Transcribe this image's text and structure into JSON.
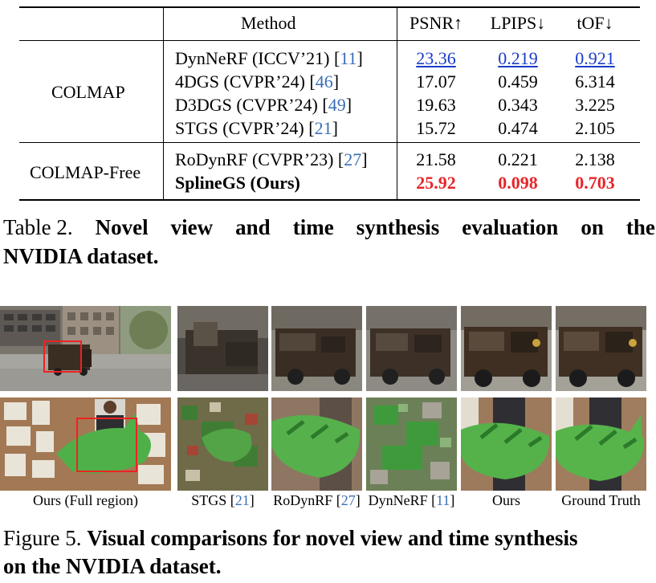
{
  "table": {
    "header": {
      "method": "Method",
      "psnr": "PSNR↑",
      "lpips": "LPIPS↓",
      "tof": "tOF↓"
    },
    "groups": [
      {
        "label": "COLMAP",
        "rows": [
          {
            "name": "DynNeRF (ICCV’21) [",
            "ref": "11",
            "psnr": "23.36",
            "lpips": "0.219",
            "tof": "0.921",
            "style": "second"
          },
          {
            "name": "4DGS (CVPR’24) [",
            "ref": "46",
            "psnr": "17.07",
            "lpips": "0.459",
            "tof": "6.314",
            "style": "normal"
          },
          {
            "name": "D3DGS (CVPR’24) [",
            "ref": "49",
            "psnr": "19.63",
            "lpips": "0.343",
            "tof": "3.225",
            "style": "normal"
          },
          {
            "name": "STGS (CVPR’24) [",
            "ref": "21",
            "psnr": "15.72",
            "lpips": "0.474",
            "tof": "2.105",
            "style": "normal"
          }
        ]
      },
      {
        "label": "COLMAP-Free",
        "rows": [
          {
            "name": "RoDynRF (CVPR’23) [",
            "ref": "27",
            "psnr": "21.58",
            "lpips": "0.221",
            "tof": "2.138",
            "style": "normal"
          },
          {
            "name": "SplineGS (Ours)",
            "ref": "",
            "psnr": "25.92",
            "lpips": "0.098",
            "tof": "0.703",
            "style": "best"
          }
        ]
      }
    ],
    "caption": {
      "label": "Table 2.",
      "words": [
        "Novel",
        "view",
        "and",
        "time",
        "synthesis",
        "evaluation",
        "on",
        "the"
      ],
      "line2": "NVIDIA dataset."
    }
  },
  "figure": {
    "labels": {
      "full": "Ours (Full region)",
      "stgs": "STGS [",
      "stgs_ref": "21",
      "rodynrf": "RoDynRF [",
      "rodynrf_ref": "27",
      "dynnerf": "DynNeRF [",
      "dynnerf_ref": "11",
      "ours": "Ours",
      "gt": "Ground Truth"
    },
    "caption": {
      "label": "Figure 5.",
      "line1": "Visual comparisons for novel view and time synthesis",
      "line2": "on the NVIDIA dataset."
    }
  },
  "colors": {
    "best": "#e8252a",
    "second": "#1a3cc8",
    "citation": "#3b6fb6"
  }
}
